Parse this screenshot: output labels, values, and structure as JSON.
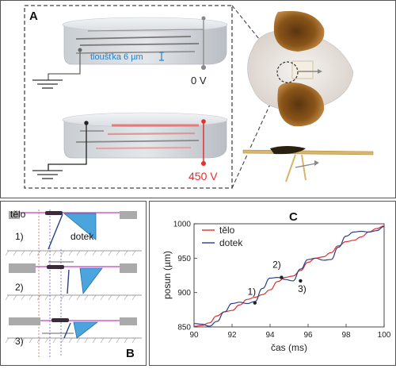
{
  "panel_a": {
    "letter": "A",
    "thickness_label": "tloušťka 6 µm",
    "top_voltage": "0 V",
    "bottom_voltage": "450 V",
    "colors": {
      "dash": "#444444",
      "blue": "#2a7fc0",
      "red": "#e03030"
    }
  },
  "panel_b": {
    "letter": "B",
    "body_label": "tělo",
    "touch_label": "dotek",
    "steps": [
      "1)",
      "2)",
      "3)"
    ]
  },
  "panel_c": {
    "letter": "C",
    "chart_data": {
      "type": "line",
      "xlabel": "čas  (ms)",
      "ylabel": "posun (µm)",
      "xlim": [
        90,
        100
      ],
      "ylim": [
        850,
        1000
      ],
      "xticks": [
        90,
        92,
        94,
        96,
        98,
        100
      ],
      "yticks": [
        850,
        900,
        950,
        1000
      ],
      "legend_position": "top-left",
      "series": [
        {
          "name": "tělo",
          "color": "#e03030",
          "x": [
            90,
            90.4,
            90.8,
            91.2,
            91.6,
            92,
            92.4,
            92.8,
            93.2,
            93.6,
            94,
            94.4,
            94.8,
            95.2,
            95.6,
            96,
            96.4,
            96.8,
            97.2,
            97.6,
            98,
            98.4,
            98.8,
            99.2,
            99.6,
            100
          ],
          "y": [
            851,
            852,
            856,
            866,
            872,
            874,
            882,
            890,
            893,
            897,
            904,
            916,
            922,
            924,
            932,
            944,
            950,
            952,
            958,
            968,
            974,
            976,
            981,
            988,
            993,
            997
          ]
        },
        {
          "name": "dotek",
          "color": "#2a3f88",
          "x": [
            90,
            90.4,
            90.8,
            91.2,
            91.6,
            92,
            92.4,
            92.8,
            93.2,
            93.6,
            94,
            94.4,
            94.8,
            95.2,
            95.6,
            96,
            96.4,
            96.8,
            97.2,
            97.6,
            98,
            98.4,
            98.8,
            99.2,
            99.6,
            100
          ],
          "y": [
            855,
            854,
            851,
            858,
            872,
            884,
            886,
            884,
            887,
            906,
            921,
            922,
            919,
            917,
            934,
            948,
            950,
            947,
            948,
            966,
            982,
            988,
            989,
            988,
            990,
            996
          ]
        }
      ],
      "annotations": [
        {
          "label": "1)",
          "x": 93.2,
          "y": 885
        },
        {
          "label": "2)",
          "x": 94.6,
          "y": 922
        },
        {
          "label": "3)",
          "x": 95.6,
          "y": 917
        }
      ]
    }
  }
}
